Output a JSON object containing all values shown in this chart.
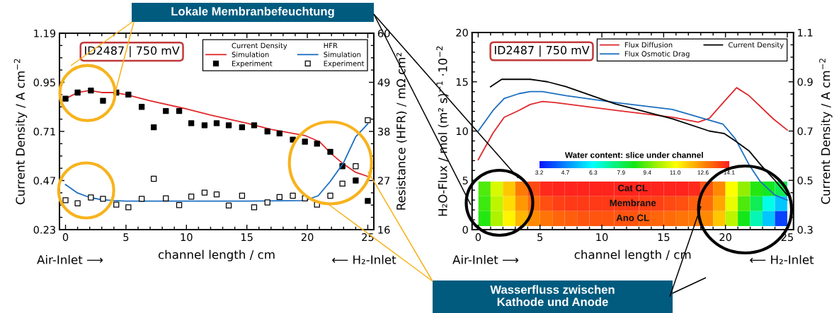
{
  "chart_data": [
    {
      "type": "line",
      "xlabel": "channel length / cm",
      "ylabel": "Current Density / A cm$^{−2}$",
      "y2label": "Resistance (HFR) / mΩ cm²",
      "legend_title": [
        "Current Density",
        "HFR"
      ],
      "legend": "top right",
      "xlim": [
        -0.5,
        25.5
      ],
      "xticks": [
        0,
        {
          "value": 1,
          "label": null
        },
        {
          "value": 2,
          "label": null
        },
        {
          "value": 3,
          "label": null
        },
        {
          "value": 4,
          "label": null
        },
        5,
        {
          "value": 6,
          "label": null
        },
        {
          "value": 7,
          "label": null
        },
        {
          "value": 8,
          "label": null
        },
        {
          "value": 9,
          "label": null
        },
        10,
        {
          "value": 11,
          "label": null
        },
        {
          "value": 12,
          "label": null
        },
        {
          "value": 13,
          "label": null
        },
        {
          "value": 14,
          "label": null
        },
        15,
        {
          "value": 16,
          "label": null
        },
        {
          "value": 17,
          "label": null
        },
        {
          "value": 18,
          "label": null
        },
        {
          "value": 19,
          "label": null
        },
        20,
        {
          "value": 21,
          "label": null
        },
        {
          "value": 22,
          "label": null
        },
        {
          "value": 23,
          "label": null
        },
        {
          "value": 24,
          "label": null
        },
        25
      ],
      "ylim": [
        0.23,
        1.19
      ],
      "yticks": [
        0.23,
        {
          "value": 0.29,
          "label": null
        },
        {
          "value": 0.35,
          "label": null
        },
        {
          "value": 0.41,
          "label": null
        },
        0.47,
        {
          "value": 0.53,
          "label": null
        },
        {
          "value": 0.59,
          "label": null
        },
        {
          "value": 0.65,
          "label": null
        },
        0.71,
        {
          "value": 0.77,
          "label": null
        },
        {
          "value": 0.83,
          "label": null
        },
        {
          "value": 0.89,
          "label": null
        },
        0.95,
        {
          "value": 1.01,
          "label": null
        },
        {
          "value": 1.07,
          "label": null
        },
        {
          "value": 1.13,
          "label": null
        },
        1.19
      ],
      "y2lim": [
        16,
        60
      ],
      "y2ticks": [
        16,
        {
          "value": 18.75,
          "label": null
        },
        {
          "value": 21.5,
          "label": null
        },
        {
          "value": 24.25,
          "label": null
        },
        27,
        {
          "value": 29.75,
          "label": null
        },
        {
          "value": 32.5,
          "label": null
        },
        {
          "value": 35.25,
          "label": null
        },
        38,
        {
          "value": 40.75,
          "label": null
        },
        {
          "value": 43.5,
          "label": null
        },
        {
          "value": 46.25,
          "label": null
        },
        49,
        {
          "value": 51.75,
          "label": null
        },
        {
          "value": 54.5,
          "label": null
        },
        {
          "value": 57.25,
          "label": null
        },
        60
      ],
      "series": [
        {
          "name": "Simulation",
          "type": "line",
          "color": "#e0282d",
          "x": [
            0,
            1,
            2,
            3,
            4,
            5,
            7,
            10,
            12,
            15,
            17,
            19.8,
            21,
            22,
            23,
            24,
            25
          ],
          "values": [
            0.87,
            0.9,
            0.91,
            0.9,
            0.9,
            0.89,
            0.86,
            0.82,
            0.79,
            0.75,
            0.72,
            0.69,
            0.66,
            0.6,
            0.55,
            0.51,
            0.49
          ]
        },
        {
          "name": "Experiment",
          "type": "scatter",
          "marker": "square",
          "color": "#000000",
          "x": [
            0,
            1,
            2.1,
            3.1,
            4.2,
            5.2,
            6.3,
            7.3,
            8.3,
            9.4,
            10.4,
            11.5,
            12.5,
            13.5,
            14.6,
            15.6,
            16.7,
            17.7,
            18.8,
            19.8,
            20.8,
            21.9,
            22.9,
            24,
            25
          ],
          "values": [
            0.87,
            0.9,
            0.91,
            0.86,
            0.9,
            0.89,
            0.83,
            0.73,
            0.81,
            0.81,
            0.75,
            0.74,
            0.75,
            0.74,
            0.73,
            0.74,
            0.71,
            0.7,
            0.67,
            0.66,
            0.65,
            0.61,
            0.54,
            0.47,
            0.37
          ]
        },
        {
          "name": "Simulation",
          "type": "line",
          "axis": "y2",
          "color": "#1c6fc0",
          "x": [
            0,
            1,
            2,
            3,
            4,
            5,
            10,
            15,
            19.8,
            20.9,
            21.9,
            23,
            24,
            25
          ],
          "values": [
            26.1,
            24.2,
            23.2,
            22.7,
            22.5,
            22.4,
            22.4,
            22.4,
            22.5,
            23.6,
            26.8,
            31.0,
            36.8,
            39.7
          ]
        },
        {
          "name": "Experiment",
          "type": "scatter",
          "marker": "square",
          "axis": "y2",
          "color": "#ffffff",
          "x": [
            0,
            1,
            2.1,
            3.1,
            4.2,
            5.2,
            6.3,
            7.3,
            8.3,
            9.4,
            10.4,
            11.5,
            12.5,
            13.5,
            14.6,
            15.6,
            16.7,
            17.7,
            18.8,
            19.8,
            20.8,
            21.9,
            22.9,
            24,
            25
          ],
          "values": [
            22.6,
            21.9,
            23.2,
            22.9,
            21.6,
            21.0,
            22.9,
            27.4,
            23.0,
            21.5,
            23.4,
            24.3,
            23.9,
            21.4,
            23.6,
            21.0,
            22.1,
            23.3,
            23.6,
            23.0,
            21.6,
            23.6,
            26.3,
            30.2,
            40.5
          ]
        }
      ],
      "annotations": [
        "ID2487 | 750 mV",
        "Air-Inlet ⟶",
        "⟵ H₂-Inlet",
        "Lokale Membranbefeuchtung",
        "Wasserfluss zwischen\nKathode und Anode"
      ]
    },
    {
      "type": "line",
      "xlabel": "channel length / cm",
      "ylabel": "H₂O-Flux / mol (m² s)$^{−1}$ ·10$^{−2}$",
      "y2label": "Current Density / A cm$^{−2}$",
      "legend": "top right",
      "xlim": [
        -0.5,
        25.5
      ],
      "xticks": [
        0,
        {
          "value": 1,
          "label": null
        },
        {
          "value": 2,
          "label": null
        },
        {
          "value": 3,
          "label": null
        },
        {
          "value": 4,
          "label": null
        },
        5,
        {
          "value": 6,
          "label": null
        },
        {
          "value": 7,
          "label": null
        },
        {
          "value": 8,
          "label": null
        },
        {
          "value": 9,
          "label": null
        },
        10,
        {
          "value": 11,
          "label": null
        },
        {
          "value": 12,
          "label": null
        },
        {
          "value": 13,
          "label": null
        },
        {
          "value": 14,
          "label": null
        },
        15,
        {
          "value": 16,
          "label": null
        },
        {
          "value": 17,
          "label": null
        },
        {
          "value": 18,
          "label": null
        },
        {
          "value": 19,
          "label": null
        },
        20,
        {
          "value": 21,
          "label": null
        },
        {
          "value": 22,
          "label": null
        },
        {
          "value": 23,
          "label": null
        },
        {
          "value": 24,
          "label": null
        },
        25
      ],
      "ylim": [
        0,
        20
      ],
      "yticks": [
        0,
        {
          "value": 1,
          "label": null
        },
        {
          "value": 2,
          "label": null
        },
        {
          "value": 3,
          "label": null
        },
        {
          "value": 4,
          "label": null
        },
        5,
        {
          "value": 6,
          "label": null
        },
        {
          "value": 7,
          "label": null
        },
        {
          "value": 8,
          "label": null
        },
        {
          "value": 9,
          "label": null
        },
        10,
        {
          "value": 11,
          "label": null
        },
        {
          "value": 12,
          "label": null
        },
        {
          "value": 13,
          "label": null
        },
        {
          "value": 14,
          "label": null
        },
        15,
        {
          "value": 16,
          "label": null
        },
        {
          "value": 17,
          "label": null
        },
        {
          "value": 18,
          "label": null
        },
        {
          "value": 19,
          "label": null
        },
        20
      ],
      "y2lim": [
        0.3,
        1.1
      ],
      "y2ticks": [
        0.3,
        {
          "value": 0.35,
          "label": null
        },
        {
          "value": 0.4,
          "label": null
        },
        {
          "value": 0.45,
          "label": null
        },
        0.5,
        {
          "value": 0.55,
          "label": null
        },
        {
          "value": 0.6,
          "label": null
        },
        {
          "value": 0.65,
          "label": null
        },
        0.7,
        {
          "value": 0.75,
          "label": null
        },
        {
          "value": 0.8,
          "label": null
        },
        {
          "value": 0.85,
          "label": null
        },
        0.9,
        {
          "value": 0.95,
          "label": null
        },
        {
          "value": 1.0,
          "label": null
        },
        {
          "value": 1.05,
          "label": null
        },
        1.1
      ],
      "series": [
        {
          "name": "Flux Diffusion",
          "color": "#e0282d",
          "x": [
            0,
            1.2,
            2.1,
            3.3,
            4.2,
            5.2,
            6.2,
            11.1,
            15.7,
            17.8,
            18.7,
            19.9,
            20.9,
            21.9,
            23.9,
            25
          ],
          "values": [
            7.1,
            9.8,
            11.4,
            12.1,
            12.7,
            13.0,
            12.9,
            12.1,
            11.4,
            10.9,
            11.3,
            13.0,
            14.4,
            13.6,
            11.2,
            10.1
          ]
        },
        {
          "name": "Flux Osmotic Drag",
          "color": "#1c6fc0",
          "x": [
            0,
            1.2,
            2.1,
            3.3,
            4.2,
            5.2,
            7.1,
            11.1,
            15.7,
            18.7,
            19.8,
            20.8,
            21.9,
            22.8,
            24,
            25
          ],
          "values": [
            10.0,
            12.1,
            13.3,
            13.8,
            14.0,
            14.0,
            13.6,
            12.9,
            12.2,
            11.1,
            10.7,
            9.2,
            6.6,
            4.9,
            3.5,
            3.0
          ]
        },
        {
          "name": "Current Density",
          "axis": "y2",
          "color": "#000000",
          "x": [
            1,
            1.9,
            3.1,
            4.2,
            5.6,
            7.1,
            11.1,
            15.7,
            18.7,
            19.9,
            20.8,
            21.9,
            22.9,
            24,
            25
          ],
          "values": [
            0.88,
            0.91,
            0.91,
            0.91,
            0.9,
            0.88,
            0.81,
            0.75,
            0.7,
            0.69,
            0.66,
            0.62,
            0.56,
            0.5,
            0.44
          ]
        }
      ],
      "annotations": [
        "ID2487 | 750 mV",
        "Air-Inlet ⟶",
        "⟵ H₂-Inlet"
      ]
    },
    {
      "type": "heatmap",
      "clabel": "Water content: slice under channel",
      "clim": [
        3.2,
        14.1
      ],
      "cticks": [
        3.2,
        4.7,
        6.3,
        7.9,
        9.4,
        {
          "value": 11,
          "label": "11.0"
        },
        12.6,
        14.1
      ],
      "categories": [
        null,
        null,
        null,
        null,
        null,
        null,
        null,
        null,
        null,
        null,
        null,
        null,
        null,
        null,
        null,
        null,
        null,
        null,
        null,
        null,
        null,
        null,
        null,
        null,
        null
      ],
      "y_categories": [
        "Cat CL",
        "Membrane",
        "Ano CL"
      ],
      "cells": [
        [
          9.2,
          10.6,
          11.8,
          12.8,
          13.5,
          13.9,
          14.0,
          14.0,
          14.0,
          14.0,
          14.0,
          14.0,
          14.0,
          14.0,
          14.0,
          14.0,
          14.0,
          13.9,
          13.3,
          12.6,
          11.0,
          9.8,
          8.8,
          8.5,
          8.0
        ],
        [
          9.0,
          10.3,
          11.5,
          12.4,
          13.0,
          13.4,
          13.6,
          13.7,
          13.7,
          13.7,
          13.7,
          13.7,
          13.7,
          13.6,
          13.6,
          13.5,
          13.4,
          13.2,
          13.0,
          12.2,
          10.8,
          9.2,
          8.0,
          6.5,
          5.5
        ],
        [
          8.8,
          10.1,
          11.2,
          12.0,
          12.6,
          12.9,
          13.1,
          13.2,
          13.3,
          13.3,
          13.3,
          13.3,
          13.3,
          13.2,
          13.1,
          13.0,
          12.9,
          12.8,
          12.6,
          11.8,
          10.3,
          8.6,
          7.0,
          5.5,
          3.8
        ]
      ]
    }
  ]
}
